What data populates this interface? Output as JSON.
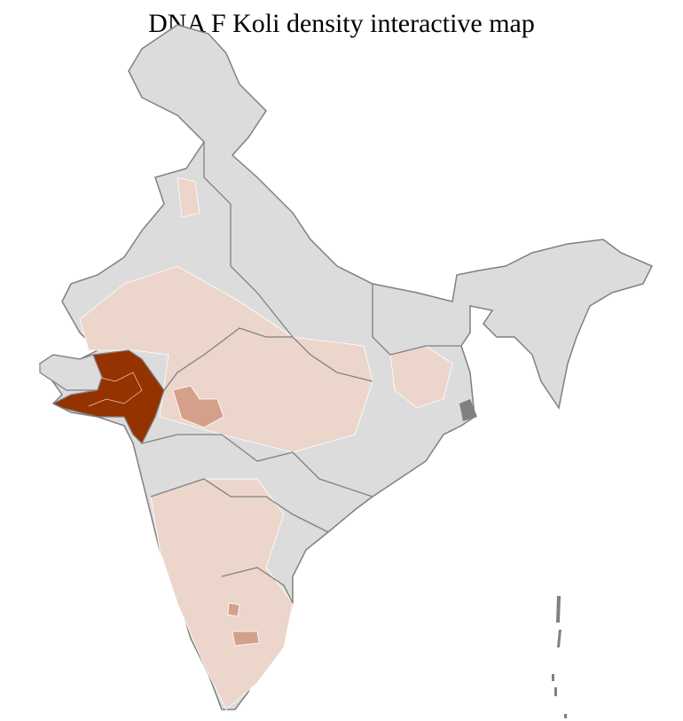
{
  "title": "DNA F Koli density interactive map",
  "colors": {
    "no_data": "#dcdcdc",
    "low": "#ecd6cb",
    "medium": "#d4a08a",
    "high": "#953300",
    "state_border": "#808080",
    "district_border": "#ffffff"
  }
}
